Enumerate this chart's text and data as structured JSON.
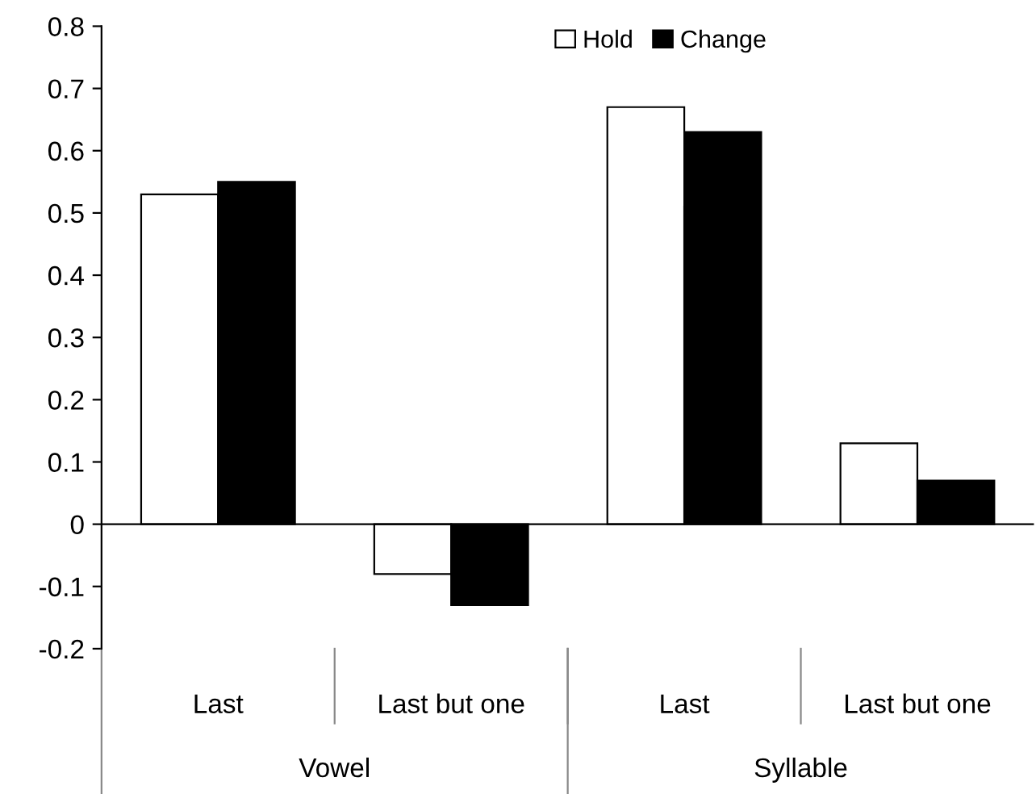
{
  "chart_data": {
    "type": "bar",
    "categories": [
      "Last",
      "Last but one",
      "Last",
      "Last but one"
    ],
    "annotations": [
      "Vowel",
      "Syllable"
    ],
    "series": [
      {
        "name": "Hold",
        "color": "#ffffff",
        "values": [
          0.53,
          -0.08,
          0.67,
          0.13
        ]
      },
      {
        "name": "Change",
        "color": "#000000",
        "values": [
          0.55,
          -0.13,
          0.63,
          0.07
        ]
      }
    ],
    "ylim": [
      -0.2,
      0.8
    ],
    "yticks": [
      {
        "value": -0.2,
        "label": "-0.2"
      },
      {
        "value": -0.1,
        "label": "-0.1"
      },
      0,
      0.1,
      0.2,
      0.3,
      0.4,
      0.5,
      0.6,
      0.7,
      0.8
    ],
    "legend": "top"
  }
}
